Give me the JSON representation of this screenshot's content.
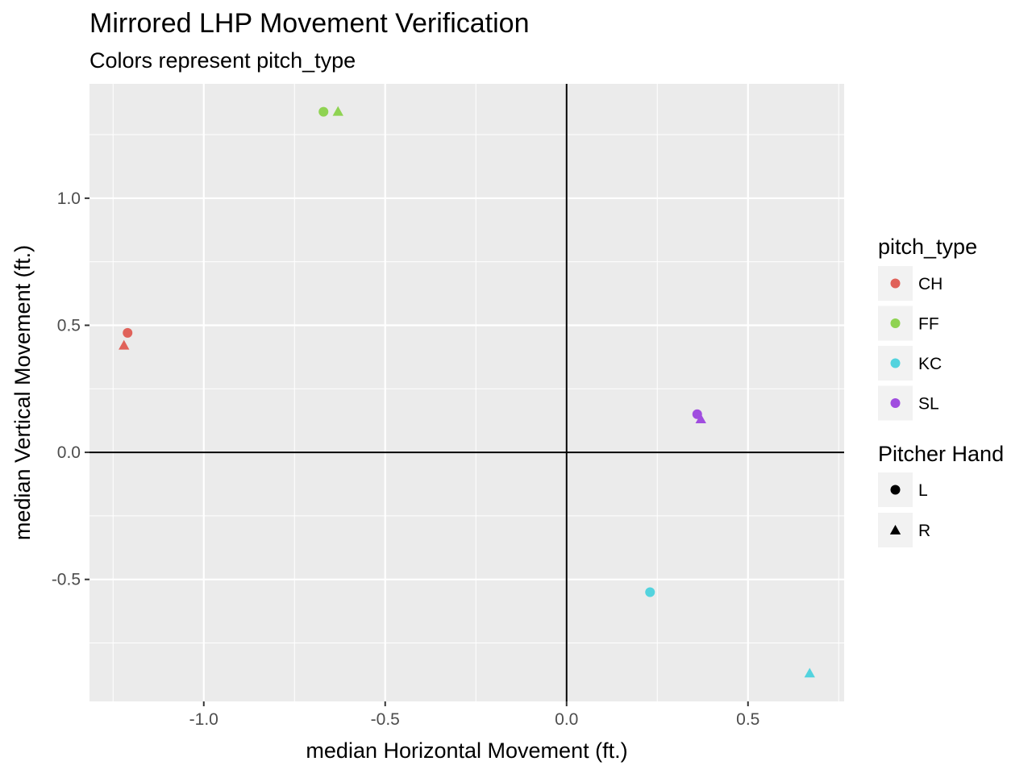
{
  "chart_data": {
    "type": "scatter",
    "title": "Mirrored LHP Movement Verification",
    "subtitle": "Colors represent pitch_type",
    "xlabel": "median Horizontal Movement (ft.)",
    "ylabel": "median Vertical Movement (ft.)",
    "xlim": [
      -1.315,
      0.765
    ],
    "ylim": [
      -0.98,
      1.45
    ],
    "x_ticks": [
      -1.0,
      -0.5,
      0.0,
      0.5
    ],
    "x_tick_labels": [
      "-1.0",
      "-0.5",
      "0.0",
      "0.5"
    ],
    "y_ticks": [
      -0.5,
      0.0,
      0.5,
      1.0
    ],
    "y_tick_labels": [
      "-0.5",
      "0.0",
      "0.5",
      "1.0"
    ],
    "grid": true,
    "reference_lines": {
      "x": 0,
      "y": 0
    },
    "legend_position": "right",
    "color_legend": {
      "title": "pitch_type",
      "items": [
        {
          "label": "CH",
          "color": "#e0625a"
        },
        {
          "label": "FF",
          "color": "#8fd352"
        },
        {
          "label": "KC",
          "color": "#53d3de"
        },
        {
          "label": "SL",
          "color": "#a04ddf"
        }
      ]
    },
    "shape_legend": {
      "title": "Pitcher Hand",
      "items": [
        {
          "label": "L",
          "shape": "circle"
        },
        {
          "label": "R",
          "shape": "triangle"
        }
      ]
    },
    "points": [
      {
        "pitch_type": "CH",
        "hand": "L",
        "x": -1.21,
        "y": 0.47
      },
      {
        "pitch_type": "CH",
        "hand": "R",
        "x": -1.22,
        "y": 0.42
      },
      {
        "pitch_type": "FF",
        "hand": "L",
        "x": -0.67,
        "y": 1.34
      },
      {
        "pitch_type": "FF",
        "hand": "R",
        "x": -0.63,
        "y": 1.34
      },
      {
        "pitch_type": "KC",
        "hand": "L",
        "x": 0.23,
        "y": -0.55
      },
      {
        "pitch_type": "KC",
        "hand": "R",
        "x": 0.67,
        "y": -0.87
      },
      {
        "pitch_type": "SL",
        "hand": "L",
        "x": 0.36,
        "y": 0.15
      },
      {
        "pitch_type": "SL",
        "hand": "R",
        "x": 0.37,
        "y": 0.13
      }
    ]
  }
}
